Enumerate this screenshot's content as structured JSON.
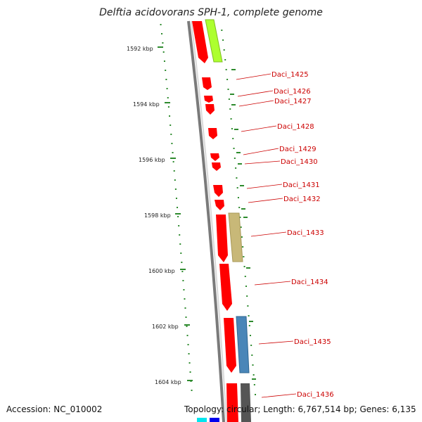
{
  "title": "Delftia acidovorans SPH-1, complete genome",
  "accession_label": "Accession: NC_010002",
  "topology_label": "Topology: circular; Length: 6,767,514 bp; Genes: 6,135",
  "scale_labels": [
    "1592 kbp",
    "1594 kbp",
    "1596 kbp",
    "1598 kbp",
    "1600 kbp",
    "1602 kbp",
    "1604 kbp"
  ],
  "gene_labels": [
    "Daci_1425",
    "Daci_1426",
    "Daci_1427",
    "Daci_1428",
    "Daci_1429",
    "Daci_1430",
    "Daci_1431",
    "Daci_1432",
    "Daci_1433",
    "Daci_1434",
    "Daci_1435",
    "Daci_1436"
  ],
  "colors": {
    "gene": "#ff0000",
    "backbone": "#7a7a7a",
    "tick": "#2e8b2e",
    "label_text": "#cc0000",
    "category_lime": "#adff2f",
    "category_tan": "#c8b878",
    "category_steel": "#4a86b8",
    "category_gray": "#555555",
    "category_cyan": "#00e5ee",
    "category_blue": "#0000ee"
  }
}
